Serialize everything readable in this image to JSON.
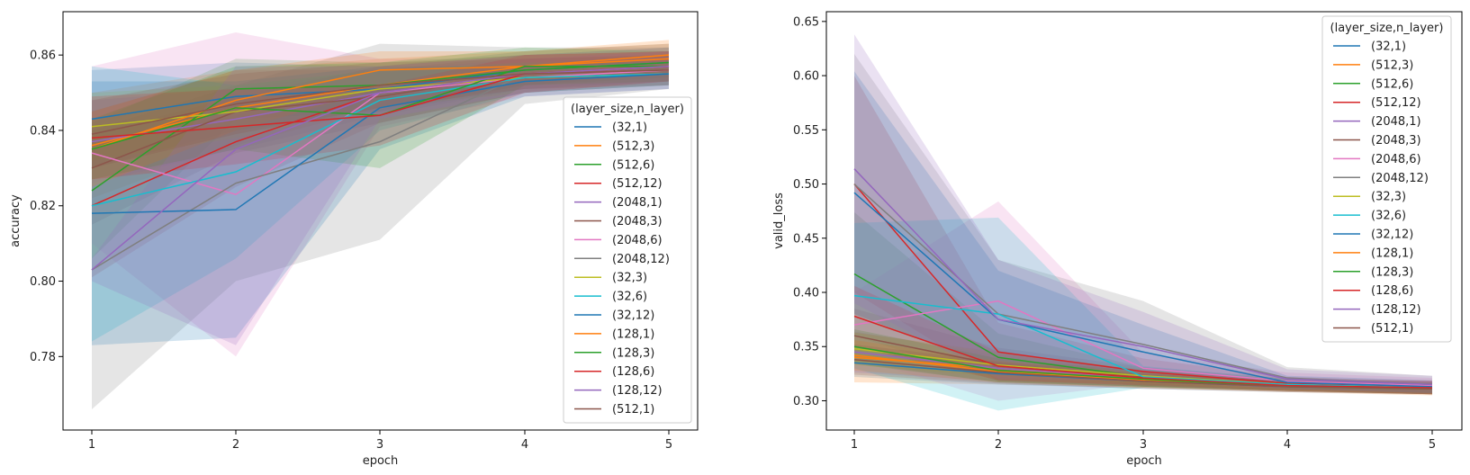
{
  "colors": {
    "series": [
      "#1f77b4",
      "#ff7f0e",
      "#2ca02c",
      "#d62728",
      "#9467bd",
      "#8c564b",
      "#e377c2",
      "#7f7f7f",
      "#bcbd22",
      "#17becf",
      "#1f77b4",
      "#ff7f0e",
      "#2ca02c",
      "#d62728",
      "#9467bd",
      "#8c564b"
    ]
  },
  "chart_data": [
    {
      "type": "line",
      "xlabel": "epoch",
      "ylabel": "accuracy",
      "x": [
        1,
        2,
        3,
        4,
        5
      ],
      "xticks": [
        "1",
        "2",
        "3",
        "4",
        "5"
      ],
      "ylim": [
        0.7605,
        0.8715
      ],
      "yticks": [
        "0.78",
        "0.80",
        "0.82",
        "0.84",
        "0.86"
      ],
      "ytick_values": [
        0.78,
        0.8,
        0.82,
        0.84,
        0.86
      ],
      "legend_title": "(layer_size,n_layer)",
      "legend_placement": "center-right",
      "series": [
        {
          "name": "(32,1)",
          "values": [
            0.843,
            0.849,
            0.851,
            0.856,
            0.858
          ],
          "band": [
            [
              0.83,
              0.856
            ],
            [
              0.84,
              0.858
            ],
            [
              0.845,
              0.857
            ],
            [
              0.851,
              0.861
            ],
            [
              0.853,
              0.863
            ]
          ]
        },
        {
          "name": "(512,3)",
          "values": [
            0.836,
            0.846,
            0.852,
            0.857,
            0.86
          ],
          "band": [
            [
              0.822,
              0.85
            ],
            [
              0.836,
              0.856
            ],
            [
              0.846,
              0.859
            ],
            [
              0.852,
              0.861
            ],
            [
              0.855,
              0.864
            ]
          ]
        },
        {
          "name": "(512,6)",
          "values": [
            0.824,
            0.851,
            0.852,
            0.856,
            0.858
          ],
          "band": [
            [
              0.806,
              0.842
            ],
            [
              0.843,
              0.859
            ],
            [
              0.845,
              0.858
            ],
            [
              0.852,
              0.86
            ],
            [
              0.854,
              0.862
            ]
          ]
        },
        {
          "name": "(512,12)",
          "values": [
            0.82,
            0.837,
            0.85,
            0.855,
            0.857
          ],
          "band": [
            [
              0.801,
              0.839
            ],
            [
              0.825,
              0.849
            ],
            [
              0.842,
              0.857
            ],
            [
              0.85,
              0.86
            ],
            [
              0.853,
              0.861
            ]
          ]
        },
        {
          "name": "(2048,1)",
          "values": [
            0.837,
            0.843,
            0.85,
            0.855,
            0.857
          ],
          "band": [
            [
              0.826,
              0.848
            ],
            [
              0.835,
              0.851
            ],
            [
              0.844,
              0.856
            ],
            [
              0.851,
              0.859
            ],
            [
              0.853,
              0.861
            ]
          ]
        },
        {
          "name": "(2048,3)",
          "values": [
            0.83,
            0.845,
            0.849,
            0.855,
            0.857
          ],
          "band": [
            [
              0.815,
              0.845
            ],
            [
              0.834,
              0.856
            ],
            [
              0.842,
              0.856
            ],
            [
              0.85,
              0.86
            ],
            [
              0.852,
              0.861
            ]
          ]
        },
        {
          "name": "(2048,6)",
          "values": [
            0.834,
            0.823,
            0.85,
            0.854,
            0.856
          ],
          "band": [
            [
              0.81,
              0.857
            ],
            [
              0.78,
              0.866
            ],
            [
              0.841,
              0.859
            ],
            [
              0.849,
              0.859
            ],
            [
              0.851,
              0.861
            ]
          ]
        },
        {
          "name": "(2048,12)",
          "values": [
            0.803,
            0.826,
            0.837,
            0.855,
            0.857
          ],
          "band": [
            [
              0.766,
              0.84
            ],
            [
              0.8,
              0.852
            ],
            [
              0.811,
              0.863
            ],
            [
              0.847,
              0.862
            ],
            [
              0.851,
              0.862
            ]
          ]
        },
        {
          "name": "(32,3)",
          "values": [
            0.841,
            0.845,
            0.851,
            0.854,
            0.855
          ],
          "band": [
            [
              0.832,
              0.85
            ],
            [
              0.838,
              0.852
            ],
            [
              0.846,
              0.856
            ],
            [
              0.85,
              0.858
            ],
            [
              0.852,
              0.858
            ]
          ]
        },
        {
          "name": "(32,6)",
          "values": [
            0.82,
            0.829,
            0.848,
            0.854,
            0.855
          ],
          "band": [
            [
              0.784,
              0.857
            ],
            [
              0.806,
              0.852
            ],
            [
              0.84,
              0.856
            ],
            [
              0.85,
              0.858
            ],
            [
              0.852,
              0.858
            ]
          ]
        },
        {
          "name": "(32,12)",
          "values": [
            0.818,
            0.819,
            0.846,
            0.853,
            0.855
          ],
          "band": [
            [
              0.783,
              0.853
            ],
            [
              0.785,
              0.853
            ],
            [
              0.835,
              0.857
            ],
            [
              0.849,
              0.857
            ],
            [
              0.851,
              0.859
            ]
          ]
        },
        {
          "name": "(128,1)",
          "values": [
            0.835,
            0.848,
            0.856,
            0.857,
            0.859
          ],
          "band": [
            [
              0.825,
              0.845
            ],
            [
              0.84,
              0.856
            ],
            [
              0.851,
              0.861
            ],
            [
              0.853,
              0.861
            ],
            [
              0.855,
              0.863
            ]
          ]
        },
        {
          "name": "(128,3)",
          "values": [
            0.835,
            0.846,
            0.844,
            0.857,
            0.857
          ],
          "band": [
            [
              0.827,
              0.843
            ],
            [
              0.835,
              0.857
            ],
            [
              0.83,
              0.858
            ],
            [
              0.852,
              0.862
            ],
            [
              0.853,
              0.861
            ]
          ]
        },
        {
          "name": "(128,6)",
          "values": [
            0.838,
            0.841,
            0.844,
            0.855,
            0.857
          ],
          "band": [
            [
              0.827,
              0.849
            ],
            [
              0.831,
              0.851
            ],
            [
              0.836,
              0.852
            ],
            [
              0.85,
              0.86
            ],
            [
              0.853,
              0.861
            ]
          ]
        },
        {
          "name": "(128,12)",
          "values": [
            0.803,
            0.835,
            0.85,
            0.855,
            0.857
          ],
          "band": [
            [
              0.8,
              0.806
            ],
            [
              0.783,
              0.857
            ],
            [
              0.843,
              0.857
            ],
            [
              0.85,
              0.86
            ],
            [
              0.852,
              0.862
            ]
          ]
        },
        {
          "name": "(512,1)",
          "values": [
            0.839,
            0.847,
            0.852,
            0.855,
            0.856
          ],
          "band": [
            [
              0.83,
              0.848
            ],
            [
              0.839,
              0.855
            ],
            [
              0.846,
              0.858
            ],
            [
              0.851,
              0.859
            ],
            [
              0.852,
              0.86
            ]
          ]
        }
      ]
    },
    {
      "type": "line",
      "xlabel": "epoch",
      "ylabel": "valid_loss",
      "x": [
        1,
        2,
        3,
        4,
        5
      ],
      "xticks": [
        "1",
        "2",
        "3",
        "4",
        "5"
      ],
      "ylim": [
        0.273,
        0.659
      ],
      "yticks": [
        "0.30",
        "0.35",
        "0.40",
        "0.45",
        "0.50",
        "0.55",
        "0.60",
        "0.65"
      ],
      "ytick_values": [
        0.3,
        0.35,
        0.4,
        0.45,
        0.5,
        0.55,
        0.6,
        0.65
      ],
      "legend_title": "(layer_size,n_layer)",
      "legend_placement": "upper-right",
      "series": [
        {
          "name": "(32,1)",
          "values": [
            0.335,
            0.325,
            0.318,
            0.313,
            0.311
          ],
          "band": [
            [
              0.322,
              0.348
            ],
            [
              0.315,
              0.335
            ],
            [
              0.311,
              0.325
            ],
            [
              0.308,
              0.318
            ],
            [
              0.306,
              0.316
            ]
          ]
        },
        {
          "name": "(512,3)",
          "values": [
            0.34,
            0.33,
            0.32,
            0.314,
            0.312
          ],
          "band": [
            [
              0.317,
              0.363
            ],
            [
              0.315,
              0.345
            ],
            [
              0.312,
              0.328
            ],
            [
              0.308,
              0.32
            ],
            [
              0.305,
              0.319
            ]
          ]
        },
        {
          "name": "(512,6)",
          "values": [
            0.417,
            0.34,
            0.322,
            0.314,
            0.311
          ],
          "band": [
            [
              0.36,
              0.474
            ],
            [
              0.318,
              0.362
            ],
            [
              0.313,
              0.331
            ],
            [
              0.309,
              0.319
            ],
            [
              0.306,
              0.316
            ]
          ]
        },
        {
          "name": "(512,12)",
          "values": [
            0.5,
            0.345,
            0.327,
            0.316,
            0.312
          ],
          "band": [
            [
              0.4,
              0.6
            ],
            [
              0.318,
              0.372
            ],
            [
              0.315,
              0.339
            ],
            [
              0.31,
              0.322
            ],
            [
              0.306,
              0.318
            ]
          ]
        },
        {
          "name": "(2048,1)",
          "values": [
            0.345,
            0.33,
            0.321,
            0.314,
            0.312
          ],
          "band": [
            [
              0.326,
              0.364
            ],
            [
              0.318,
              0.342
            ],
            [
              0.313,
              0.329
            ],
            [
              0.309,
              0.319
            ],
            [
              0.306,
              0.318
            ]
          ]
        },
        {
          "name": "(2048,3)",
          "values": [
            0.36,
            0.333,
            0.322,
            0.315,
            0.312
          ],
          "band": [
            [
              0.335,
              0.385
            ],
            [
              0.317,
              0.349
            ],
            [
              0.313,
              0.331
            ],
            [
              0.309,
              0.321
            ],
            [
              0.306,
              0.318
            ]
          ]
        },
        {
          "name": "(2048,6)",
          "values": [
            0.37,
            0.392,
            0.33,
            0.318,
            0.314
          ],
          "band": [
            [
              0.34,
              0.4
            ],
            [
              0.3,
              0.484
            ],
            [
              0.316,
              0.344
            ],
            [
              0.31,
              0.326
            ],
            [
              0.307,
              0.321
            ]
          ]
        },
        {
          "name": "(2048,12)",
          "values": [
            0.5,
            0.38,
            0.352,
            0.321,
            0.315
          ],
          "band": [
            [
              0.38,
              0.62
            ],
            [
              0.33,
              0.43
            ],
            [
              0.313,
              0.392
            ],
            [
              0.311,
              0.331
            ],
            [
              0.307,
              0.323
            ]
          ]
        },
        {
          "name": "(32,3)",
          "values": [
            0.348,
            0.333,
            0.323,
            0.315,
            0.312
          ],
          "band": [
            [
              0.333,
              0.363
            ],
            [
              0.322,
              0.344
            ],
            [
              0.316,
              0.33
            ],
            [
              0.31,
              0.32
            ],
            [
              0.307,
              0.317
            ]
          ]
        },
        {
          "name": "(32,6)",
          "values": [
            0.397,
            0.38,
            0.322,
            0.315,
            0.312
          ],
          "band": [
            [
              0.33,
              0.464
            ],
            [
              0.291,
              0.469
            ],
            [
              0.312,
              0.332
            ],
            [
              0.31,
              0.32
            ],
            [
              0.307,
              0.317
            ]
          ]
        },
        {
          "name": "(32,12)",
          "values": [
            0.492,
            0.375,
            0.345,
            0.317,
            0.313
          ],
          "band": [
            [
              0.38,
              0.604
            ],
            [
              0.33,
              0.42
            ],
            [
              0.32,
              0.37
            ],
            [
              0.311,
              0.323
            ],
            [
              0.307,
              0.319
            ]
          ]
        },
        {
          "name": "(128,1)",
          "values": [
            0.342,
            0.327,
            0.319,
            0.313,
            0.311
          ],
          "band": [
            [
              0.328,
              0.356
            ],
            [
              0.317,
              0.337
            ],
            [
              0.312,
              0.326
            ],
            [
              0.309,
              0.317
            ],
            [
              0.306,
              0.316
            ]
          ]
        },
        {
          "name": "(128,3)",
          "values": [
            0.35,
            0.328,
            0.32,
            0.313,
            0.311
          ],
          "band": [
            [
              0.334,
              0.366
            ],
            [
              0.317,
              0.339
            ],
            [
              0.313,
              0.327
            ],
            [
              0.309,
              0.317
            ],
            [
              0.306,
              0.316
            ]
          ]
        },
        {
          "name": "(128,6)",
          "values": [
            0.378,
            0.332,
            0.321,
            0.314,
            0.312
          ],
          "band": [
            [
              0.35,
              0.406
            ],
            [
              0.319,
              0.345
            ],
            [
              0.314,
              0.328
            ],
            [
              0.309,
              0.319
            ],
            [
              0.306,
              0.318
            ]
          ]
        },
        {
          "name": "(128,12)",
          "values": [
            0.514,
            0.375,
            0.35,
            0.32,
            0.315
          ],
          "band": [
            [
              0.39,
              0.638
            ],
            [
              0.32,
              0.43
            ],
            [
              0.318,
              0.382
            ],
            [
              0.311,
              0.329
            ],
            [
              0.307,
              0.323
            ]
          ]
        },
        {
          "name": "(512,1)",
          "values": [
            0.338,
            0.326,
            0.318,
            0.313,
            0.311
          ],
          "band": [
            [
              0.324,
              0.352
            ],
            [
              0.316,
              0.336
            ],
            [
              0.311,
              0.325
            ],
            [
              0.308,
              0.318
            ],
            [
              0.306,
              0.316
            ]
          ]
        }
      ]
    }
  ]
}
